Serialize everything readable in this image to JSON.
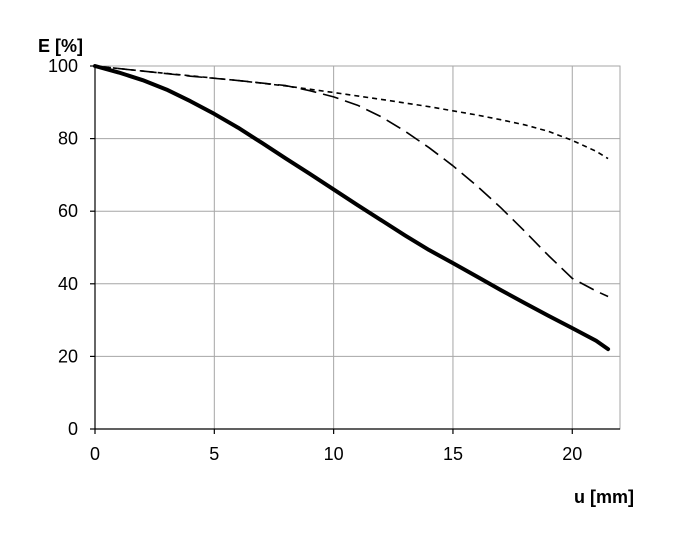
{
  "chart_data": {
    "type": "line",
    "title": "",
    "xlabel": "u [mm]",
    "ylabel": "E [%]",
    "xlim": [
      0,
      22
    ],
    "ylim": [
      0,
      100
    ],
    "x_ticks": [
      0,
      5,
      10,
      15,
      20
    ],
    "y_ticks": [
      0,
      20,
      40,
      60,
      80,
      100
    ],
    "x_tick_labels": [
      "0",
      "5",
      "10",
      "15",
      "20"
    ],
    "y_tick_labels": [
      "0",
      "20",
      "40",
      "60",
      "80",
      "100"
    ],
    "grid": true,
    "legend": "none",
    "series": [
      {
        "style": "solid-thick",
        "color": "#000000",
        "x": [
          0,
          1,
          2,
          3,
          4,
          5,
          6,
          7,
          8,
          9,
          10,
          11,
          12,
          13,
          14,
          15,
          16,
          17,
          18,
          19,
          20,
          21,
          21.5
        ],
        "y": [
          100,
          98.2,
          96.1,
          93.5,
          90.3,
          86.8,
          83.0,
          78.8,
          74.5,
          70.3,
          66.0,
          61.7,
          57.5,
          53.3,
          49.3,
          45.7,
          42.0,
          38.3,
          34.7,
          31.2,
          27.8,
          24.3,
          22.0
        ]
      },
      {
        "style": "dashed",
        "color": "#000000",
        "x": [
          0,
          2,
          4,
          6,
          8,
          9,
          10,
          11,
          12,
          13,
          14,
          15,
          16,
          17,
          18,
          19,
          20,
          21,
          21.5
        ],
        "y": [
          100,
          98.6,
          97.2,
          96.0,
          94.6,
          93.2,
          91.5,
          89.2,
          86.0,
          82.0,
          77.5,
          72.5,
          67.0,
          61.0,
          54.5,
          47.8,
          41.5,
          38.0,
          36.5
        ]
      },
      {
        "style": "dotted",
        "color": "#000000",
        "x": [
          0,
          2,
          4,
          6,
          8,
          10,
          12,
          14,
          16,
          17,
          18,
          19,
          20,
          21,
          21.5
        ],
        "y": [
          100,
          98.6,
          97.3,
          96.0,
          94.5,
          92.7,
          90.8,
          88.8,
          86.5,
          85.2,
          83.8,
          82.0,
          79.5,
          76.5,
          74.5
        ]
      }
    ]
  }
}
